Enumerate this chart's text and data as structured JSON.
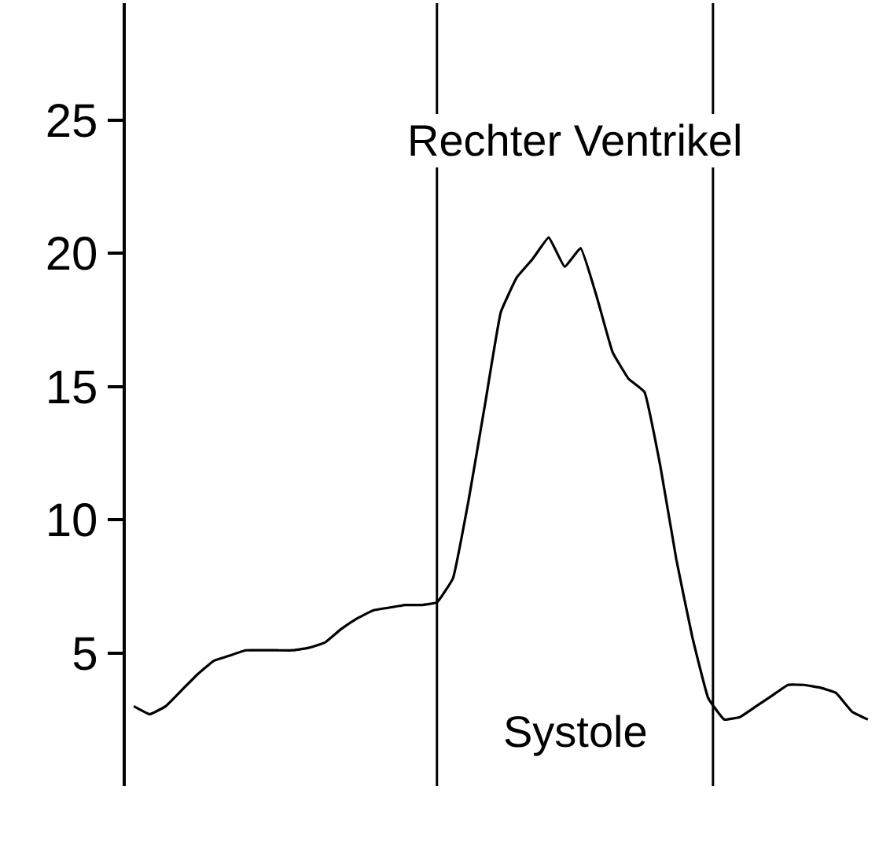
{
  "chart_data": {
    "type": "line",
    "categories": [
      null,
      null,
      null,
      null,
      null,
      null,
      null,
      null,
      null,
      null,
      null,
      null,
      null,
      null,
      null,
      null,
      null,
      null,
      null,
      null,
      null,
      null,
      null,
      null,
      null,
      null,
      null,
      null,
      null,
      null,
      null,
      null,
      null,
      null,
      null,
      null,
      null,
      null,
      null,
      null,
      null,
      null,
      null,
      null,
      null,
      null,
      null
    ],
    "series": [
      {
        "color": "#000000",
        "values": [
          3.0,
          2.7,
          3.0,
          3.6,
          4.2,
          4.7,
          4.9,
          5.1,
          5.1,
          5.1,
          5.1,
          5.2,
          5.4,
          5.9,
          6.3,
          6.6,
          6.7,
          6.8,
          6.8,
          6.9,
          7.8,
          10.8,
          14.3,
          17.8,
          19.1,
          19.8,
          20.6,
          19.5,
          20.2,
          18.4,
          16.3,
          15.3,
          14.8,
          12.0,
          8.5,
          5.6,
          3.3,
          2.5,
          2.6,
          3.0,
          3.4,
          3.8,
          3.8,
          3.7,
          3.5,
          2.8,
          2.5
        ]
      }
    ],
    "ylim": [
      0,
      29.4
    ],
    "yticks": [
      5,
      10,
      15,
      20,
      25
    ],
    "tick_labels": "y",
    "marker": "none",
    "line_style": "solid",
    "annotations": [
      "Rechter Ventrikel",
      "Systole"
    ]
  }
}
